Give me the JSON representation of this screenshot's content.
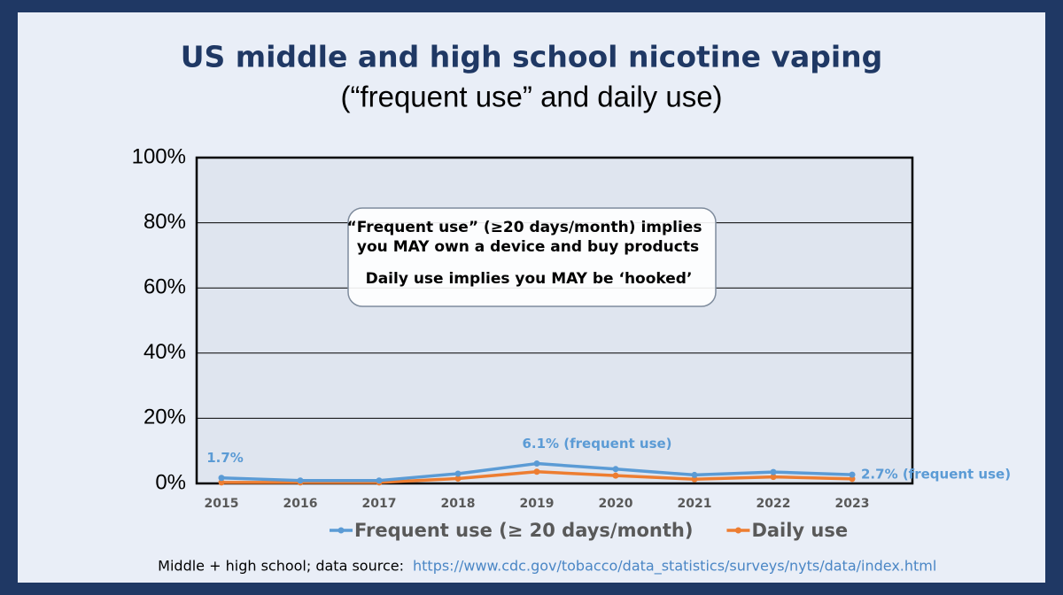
{
  "chart_data": {
    "type": "line",
    "title": "US middle and high school nicotine vaping",
    "subtitle": "(“frequent use” and daily use)",
    "categories": [
      "2015",
      "2016",
      "2017",
      "2018",
      "2019",
      "2020",
      "2021",
      "2022",
      "2023"
    ],
    "series": [
      {
        "name": "Frequent use (≥ 20 days/month)",
        "color": "#5b9bd5",
        "values": [
          1.7,
          0.9,
          0.9,
          3.0,
          6.1,
          4.4,
          2.6,
          3.5,
          2.7
        ],
        "value_labels": [
          "1.7%",
          null,
          null,
          null,
          "6.1% (frequent use)",
          null,
          null,
          null,
          "2.7% (frequent use)"
        ]
      },
      {
        "name": "Daily use",
        "color": "#ed7d31",
        "values": [
          0.3,
          0.3,
          0.3,
          1.5,
          3.6,
          2.4,
          1.3,
          2.0,
          1.4
        ]
      }
    ],
    "ylim": [
      0,
      100
    ],
    "yticks": [
      {
        "value": 0,
        "label": "0%"
      },
      {
        "value": 20,
        "label": "20%"
      },
      {
        "value": 40,
        "label": "40%"
      },
      {
        "value": 60,
        "label": "60%"
      },
      {
        "value": 80,
        "label": "80%"
      },
      {
        "value": 100,
        "label": "100%"
      }
    ],
    "grid": true,
    "annotation": [
      "“Frequent use” (≥20 days/month) implies",
      "you MAY own a device and buy products",
      "Daily use implies you MAY be ‘hooked’"
    ],
    "footer": {
      "text": "Middle + high school;  data source:",
      "url": "https://www.cdc.gov/tobacco/data_statistics/surveys/nyts/data/index.html"
    }
  }
}
